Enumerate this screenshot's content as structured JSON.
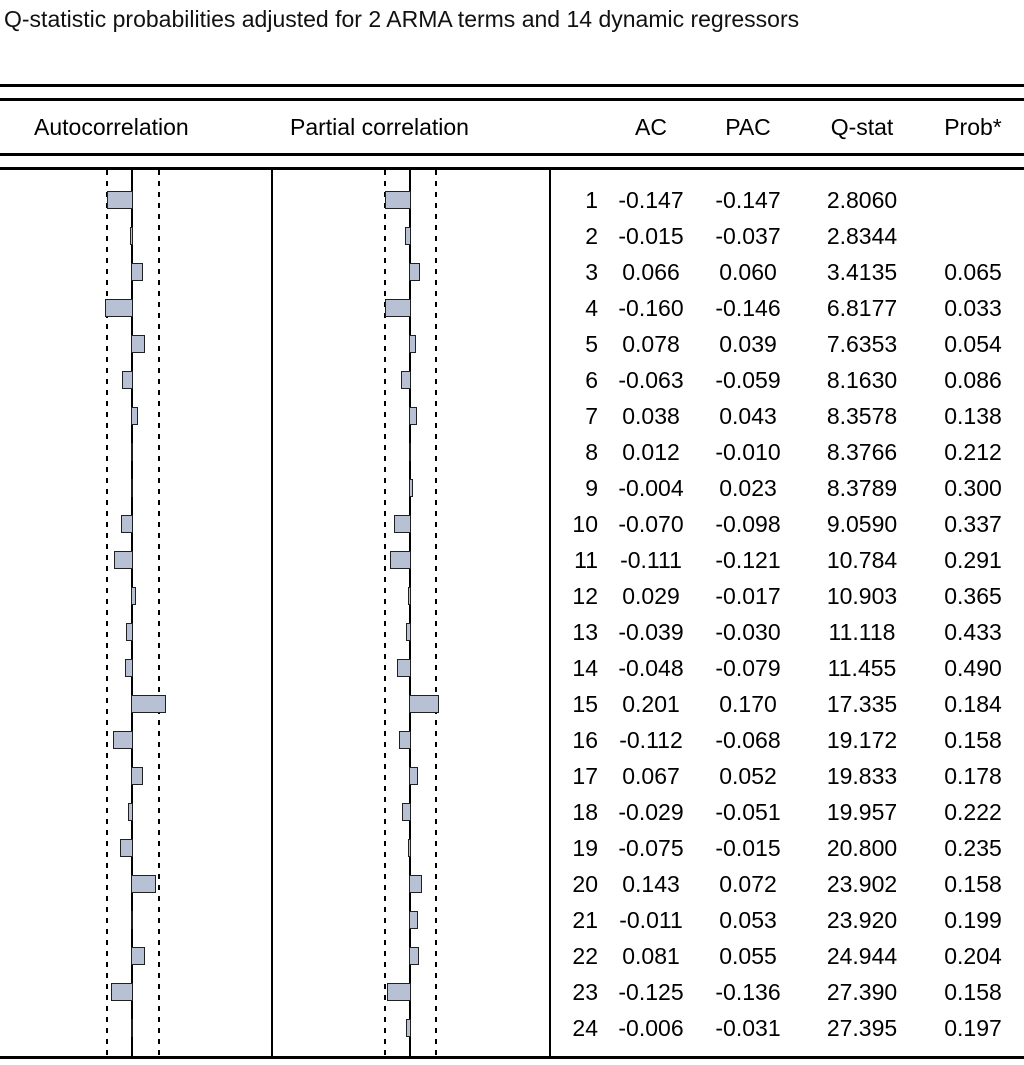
{
  "title": "Q-statistic probabilities adjusted for 2 ARMA terms and 14 dynamic regressors",
  "headers": {
    "autocorrelation": "Autocorrelation",
    "partial_correlation": "Partial correlation",
    "ac": "AC",
    "pac": "PAC",
    "q_stat": "Q-stat",
    "prob": "Prob*"
  },
  "colors": {
    "bar_fill": "#b8c0d3",
    "bar_border": "#202020",
    "line": "#000000"
  },
  "chart_data": {
    "type": "bar",
    "subtype": "correlogram",
    "orientation": "horizontal",
    "title": "Q-statistic probabilities adjusted for 2 ARMA terms and 14 dynamic regressors",
    "xlim": [
      -0.25,
      0.25
    ],
    "legend_position": "none",
    "grid": false,
    "categories": [
      1,
      2,
      3,
      4,
      5,
      6,
      7,
      8,
      9,
      10,
      11,
      12,
      13,
      14,
      15,
      16,
      17,
      18,
      19,
      20,
      21,
      22,
      23,
      24
    ],
    "series": [
      {
        "name": "AC",
        "values": [
          "-0.147",
          "-0.015",
          "0.066",
          "-0.160",
          "0.078",
          "-0.063",
          "0.038",
          "0.012",
          "-0.004",
          "-0.070",
          "-0.111",
          "0.029",
          "-0.039",
          "-0.048",
          "0.201",
          "-0.112",
          "0.067",
          "-0.029",
          "-0.075",
          "0.143",
          "-0.011",
          "0.081",
          "-0.125",
          "-0.006"
        ]
      },
      {
        "name": "PAC",
        "values": [
          "-0.147",
          "-0.037",
          "0.060",
          "-0.146",
          "0.039",
          "-0.059",
          "0.043",
          "-0.010",
          "0.023",
          "-0.098",
          "-0.121",
          "-0.017",
          "-0.030",
          "-0.079",
          "0.170",
          "-0.068",
          "0.052",
          "-0.051",
          "-0.015",
          "0.072",
          "0.053",
          "0.055",
          "-0.136",
          "-0.031"
        ]
      }
    ],
    "q_stat": [
      "2.8060",
      "2.8344",
      "3.4135",
      "6.8177",
      "7.6353",
      "8.1630",
      "8.3578",
      "8.3766",
      "8.3789",
      "9.0590",
      "10.784",
      "10.903",
      "11.118",
      "11.455",
      "17.335",
      "19.172",
      "19.833",
      "19.957",
      "20.800",
      "23.902",
      "23.920",
      "24.944",
      "27.390",
      "27.395"
    ],
    "prob": [
      "",
      "",
      "0.065",
      "0.033",
      "0.054",
      "0.086",
      "0.138",
      "0.212",
      "0.300",
      "0.337",
      "0.291",
      "0.365",
      "0.433",
      "0.490",
      "0.184",
      "0.158",
      "0.178",
      "0.222",
      "0.235",
      "0.158",
      "0.199",
      "0.204",
      "0.158",
      "0.197"
    ]
  }
}
